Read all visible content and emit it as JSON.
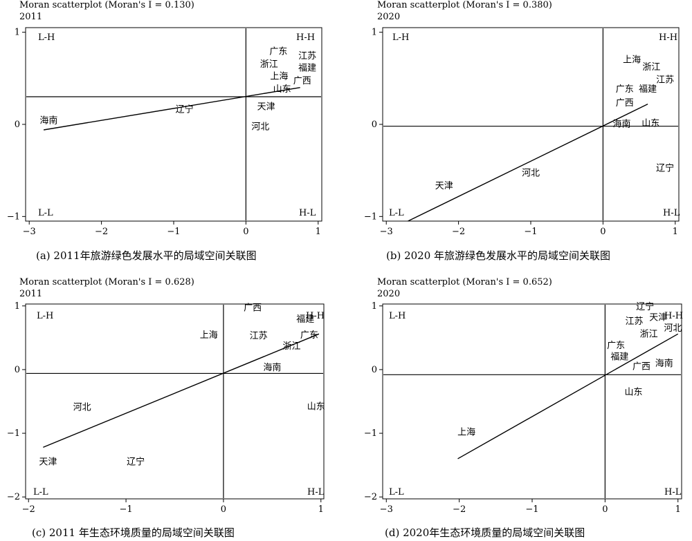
{
  "chart_data": [
    {
      "id": "a",
      "type": "scatter",
      "title": "Moran scatterplot (Moran's I = 0.130)",
      "year": "2011",
      "caption": "(a)  2011年旅游绿色发展水平的局域空间关联图",
      "xlim": [
        -3.05,
        1.05
      ],
      "ylim": [
        -1.05,
        1.05
      ],
      "xticks": [
        -3,
        -2,
        -1,
        0,
        1
      ],
      "yticks": [
        -1,
        0,
        1
      ],
      "hline": 0.3,
      "vline": 0,
      "fit_line": [
        [
          -2.8,
          -0.06
        ],
        [
          0.75,
          0.4
        ]
      ],
      "quadrants": {
        "tl": "L-H",
        "tr": "H-H",
        "bl": "L-L",
        "br": "H-L"
      },
      "points": [
        {
          "label": "广东",
          "x": 0.45,
          "y": 0.8
        },
        {
          "label": "江苏",
          "x": 0.85,
          "y": 0.75
        },
        {
          "label": "浙江",
          "x": 0.32,
          "y": 0.66
        },
        {
          "label": "福建",
          "x": 0.85,
          "y": 0.62
        },
        {
          "label": "上海",
          "x": 0.46,
          "y": 0.53
        },
        {
          "label": "广西",
          "x": 0.78,
          "y": 0.48
        },
        {
          "label": "山东",
          "x": 0.5,
          "y": 0.39
        },
        {
          "label": "天津",
          "x": 0.28,
          "y": 0.2
        },
        {
          "label": "辽宁",
          "x": -0.85,
          "y": 0.17
        },
        {
          "label": "海南",
          "x": -2.73,
          "y": 0.05
        },
        {
          "label": "河北",
          "x": 0.2,
          "y": -0.02
        }
      ]
    },
    {
      "id": "b",
      "type": "scatter",
      "title": "Moran scatterplot (Moran's I = 0.380)",
      "year": "2020",
      "caption": "(b)  2020 年旅游绿色发展水平的局域空间关联图",
      "xlim": [
        -3.05,
        1.05
      ],
      "ylim": [
        -1.05,
        1.05
      ],
      "xticks": [
        -3,
        -2,
        -1,
        0,
        1
      ],
      "yticks": [
        -1,
        0,
        1
      ],
      "hline": -0.02,
      "vline": 0,
      "fit_line": [
        [
          -2.7,
          -1.05
        ],
        [
          0.62,
          0.22
        ]
      ],
      "quadrants": {
        "tl": "L-H",
        "tr": "H-H",
        "bl": "L-L",
        "br": "H-L"
      },
      "points": [
        {
          "label": "上海",
          "x": 0.4,
          "y": 0.71
        },
        {
          "label": "浙江",
          "x": 0.67,
          "y": 0.63
        },
        {
          "label": "江苏",
          "x": 0.86,
          "y": 0.49
        },
        {
          "label": "广东",
          "x": 0.3,
          "y": 0.39
        },
        {
          "label": "福建",
          "x": 0.62,
          "y": 0.39
        },
        {
          "label": "广西",
          "x": 0.3,
          "y": 0.24
        },
        {
          "label": "海南",
          "x": 0.26,
          "y": 0.01
        },
        {
          "label": "山东",
          "x": 0.66,
          "y": 0.02
        },
        {
          "label": "河北",
          "x": -1.0,
          "y": -0.52
        },
        {
          "label": "天津",
          "x": -2.2,
          "y": -0.66
        },
        {
          "label": "辽宁",
          "x": 0.86,
          "y": -0.47
        }
      ]
    },
    {
      "id": "c",
      "type": "scatter",
      "title": "Moran scatterplot (Moran's I = 0.628)",
      "year": "2011",
      "caption": "(c)  2011 年生态环境质量的局域空间关联图",
      "xlim": [
        -2.03,
        1.03
      ],
      "ylim": [
        -2.03,
        1.03
      ],
      "xticks": [
        -2,
        -1,
        0,
        1
      ],
      "yticks": [
        -2,
        -1,
        0,
        1
      ],
      "hline": -0.06,
      "vline": 0,
      "fit_line": [
        [
          -1.85,
          -1.22
        ],
        [
          0.98,
          0.56
        ]
      ],
      "quadrants": {
        "tl": "L-H",
        "tr": "H-H",
        "bl": "L-L",
        "br": "H-L"
      },
      "points": [
        {
          "label": "广西",
          "x": 0.3,
          "y": 0.98
        },
        {
          "label": "福建",
          "x": 0.84,
          "y": 0.8
        },
        {
          "label": "广东",
          "x": 0.88,
          "y": 0.55
        },
        {
          "label": "上海",
          "x": -0.15,
          "y": 0.55
        },
        {
          "label": "江苏",
          "x": 0.36,
          "y": 0.54
        },
        {
          "label": "浙江",
          "x": 0.7,
          "y": 0.38
        },
        {
          "label": "海南",
          "x": 0.5,
          "y": 0.04
        },
        {
          "label": "河北",
          "x": -1.45,
          "y": -0.58
        },
        {
          "label": "山东",
          "x": 0.95,
          "y": -0.57
        },
        {
          "label": "天津",
          "x": -1.8,
          "y": -1.44
        },
        {
          "label": "辽宁",
          "x": -0.9,
          "y": -1.44
        }
      ]
    },
    {
      "id": "d",
      "type": "scatter",
      "title": "Moran scatterplot (Moran's I = 0.652)",
      "year": "2020",
      "caption": "(d)  2020年生态环境质量的局域空间关联图",
      "xlim": [
        -3.05,
        1.05
      ],
      "ylim": [
        -2.03,
        1.03
      ],
      "xticks": [
        -3,
        -2,
        -1,
        0,
        1
      ],
      "yticks": [
        -2,
        -1,
        0,
        1
      ],
      "hline": -0.08,
      "vline": 0,
      "fit_line": [
        [
          -2.02,
          -1.4
        ],
        [
          1.0,
          0.56
        ]
      ],
      "quadrants": {
        "tl": "L-H",
        "tr": "H-H",
        "bl": "L-L",
        "br": "H-L"
      },
      "points": [
        {
          "label": "辽宁",
          "x": 0.55,
          "y": 1.0
        },
        {
          "label": "天津",
          "x": 0.73,
          "y": 0.83
        },
        {
          "label": "江苏",
          "x": 0.4,
          "y": 0.77
        },
        {
          "label": "河北",
          "x": 0.93,
          "y": 0.66
        },
        {
          "label": "浙江",
          "x": 0.6,
          "y": 0.57
        },
        {
          "label": "广东",
          "x": 0.15,
          "y": 0.39
        },
        {
          "label": "福建",
          "x": 0.2,
          "y": 0.21
        },
        {
          "label": "海南",
          "x": 0.81,
          "y": 0.11
        },
        {
          "label": "广西",
          "x": 0.5,
          "y": 0.06
        },
        {
          "label": "山东",
          "x": 0.39,
          "y": -0.34
        },
        {
          "label": "上海",
          "x": -1.9,
          "y": -0.97
        }
      ]
    }
  ]
}
